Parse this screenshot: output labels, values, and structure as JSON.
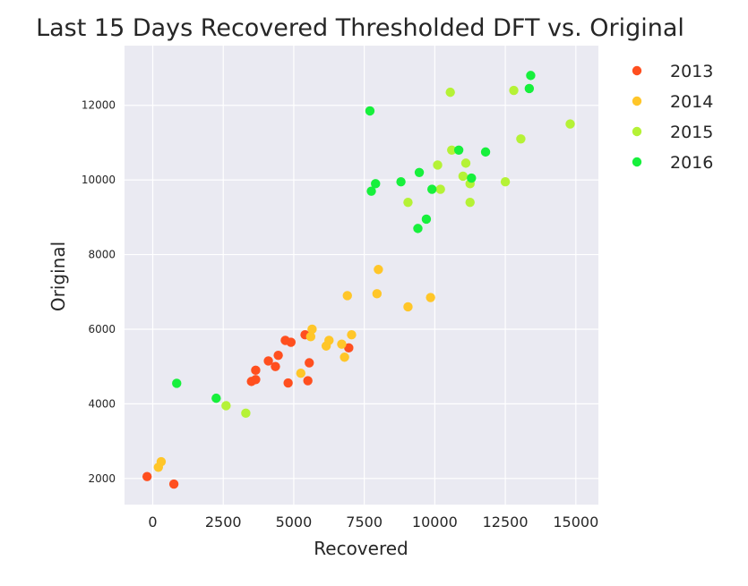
{
  "chart_data": {
    "type": "scatter",
    "title": "Last 15 Days Recovered Thresholded DFT vs. Original",
    "xlabel": "Recovered",
    "ylabel": "Original",
    "xlim": [
      -1000,
      15800
    ],
    "ylim": [
      1300,
      13600
    ],
    "xticks": [
      0,
      2500,
      5000,
      7500,
      10000,
      12500,
      15000
    ],
    "yticks": [
      2000,
      4000,
      6000,
      8000,
      10000,
      12000
    ],
    "grid": true,
    "legend_position": "right",
    "series": [
      {
        "name": "2013",
        "color": "#ff4f1f",
        "points": [
          {
            "x": -200,
            "y": 2050
          },
          {
            "x": 750,
            "y": 1850
          },
          {
            "x": 3500,
            "y": 4600
          },
          {
            "x": 3650,
            "y": 4650
          },
          {
            "x": 3650,
            "y": 4900
          },
          {
            "x": 4100,
            "y": 5150
          },
          {
            "x": 4350,
            "y": 5000
          },
          {
            "x": 4450,
            "y": 5300
          },
          {
            "x": 4700,
            "y": 5700
          },
          {
            "x": 4800,
            "y": 4560
          },
          {
            "x": 4900,
            "y": 5650
          },
          {
            "x": 5400,
            "y": 5850
          },
          {
            "x": 5500,
            "y": 4620
          },
          {
            "x": 5550,
            "y": 5100
          },
          {
            "x": 6950,
            "y": 5500
          }
        ]
      },
      {
        "name": "2014",
        "color": "#ffc629",
        "points": [
          {
            "x": 200,
            "y": 2300
          },
          {
            "x": 300,
            "y": 2450
          },
          {
            "x": 5250,
            "y": 4820
          },
          {
            "x": 5600,
            "y": 5800
          },
          {
            "x": 5650,
            "y": 6000
          },
          {
            "x": 6150,
            "y": 5550
          },
          {
            "x": 6250,
            "y": 5700
          },
          {
            "x": 6700,
            "y": 5600
          },
          {
            "x": 6800,
            "y": 5250
          },
          {
            "x": 7050,
            "y": 5850
          },
          {
            "x": 6900,
            "y": 6900
          },
          {
            "x": 7950,
            "y": 6950
          },
          {
            "x": 8000,
            "y": 7600
          },
          {
            "x": 9050,
            "y": 6600
          },
          {
            "x": 9850,
            "y": 6850
          }
        ]
      },
      {
        "name": "2015",
        "color": "#b5f236",
        "points": [
          {
            "x": 2600,
            "y": 3950
          },
          {
            "x": 3300,
            "y": 3750
          },
          {
            "x": 9050,
            "y": 9400
          },
          {
            "x": 10100,
            "y": 10400
          },
          {
            "x": 10200,
            "y": 9750
          },
          {
            "x": 10550,
            "y": 12350
          },
          {
            "x": 10600,
            "y": 10800
          },
          {
            "x": 11000,
            "y": 10100
          },
          {
            "x": 11100,
            "y": 10450
          },
          {
            "x": 11250,
            "y": 9900
          },
          {
            "x": 11250,
            "y": 9400
          },
          {
            "x": 12500,
            "y": 9950
          },
          {
            "x": 12800,
            "y": 12400
          },
          {
            "x": 13050,
            "y": 11100
          },
          {
            "x": 14800,
            "y": 11500
          }
        ]
      },
      {
        "name": "2016",
        "color": "#17f03c",
        "points": [
          {
            "x": 850,
            "y": 4550
          },
          {
            "x": 2250,
            "y": 4150
          },
          {
            "x": 7700,
            "y": 11850
          },
          {
            "x": 7750,
            "y": 9700
          },
          {
            "x": 7900,
            "y": 9900
          },
          {
            "x": 8800,
            "y": 9950
          },
          {
            "x": 9400,
            "y": 8700
          },
          {
            "x": 9450,
            "y": 10200
          },
          {
            "x": 9700,
            "y": 8950
          },
          {
            "x": 9900,
            "y": 9750
          },
          {
            "x": 10850,
            "y": 10800
          },
          {
            "x": 11300,
            "y": 10050
          },
          {
            "x": 11800,
            "y": 10750
          },
          {
            "x": 13350,
            "y": 12450
          },
          {
            "x": 13400,
            "y": 12800
          }
        ]
      }
    ]
  }
}
